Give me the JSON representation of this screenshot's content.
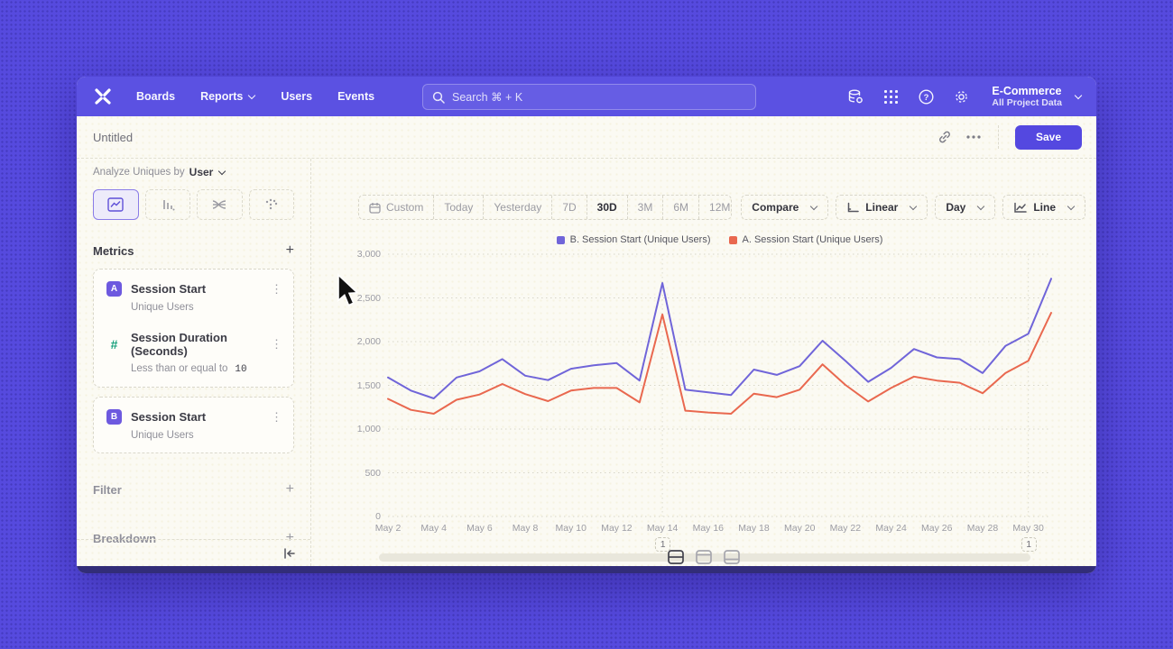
{
  "nav": {
    "items": [
      "Boards",
      "Reports",
      "Users",
      "Events"
    ],
    "search": {
      "placeholder": "Search  ⌘ + K"
    },
    "project": {
      "name": "E-Commerce",
      "scope": "All Project Data"
    }
  },
  "titlebar": {
    "title": "Untitled",
    "save_label": "Save"
  },
  "sidebar": {
    "analyze_prefix": "Analyze Uniques by",
    "analyze_value": "User",
    "metrics_header": "Metrics",
    "filter_label": "Filter",
    "breakdown_label": "Breakdown",
    "metrics": [
      {
        "badge": "A",
        "title": "Session Start",
        "subtitle": "Unique Users"
      },
      {
        "badge": "#",
        "title": "Session Duration (Seconds)",
        "subtitle": "Less than or equal to",
        "subtitle_value": "10"
      },
      {
        "badge": "B",
        "title": "Session Start",
        "subtitle": "Unique Users"
      }
    ]
  },
  "toolbar": {
    "ranges": [
      "Custom",
      "Today",
      "Yesterday",
      "7D",
      "30D",
      "3M",
      "6M",
      "12M"
    ],
    "selected_range": "30D",
    "compare_label": "Compare",
    "scale_label": "Linear",
    "interval_label": "Day",
    "chart_type_label": "Line"
  },
  "chart_data": {
    "type": "line",
    "title": "",
    "x": [
      "May 2",
      "May 3",
      "May 4",
      "May 5",
      "May 6",
      "May 7",
      "May 8",
      "May 9",
      "May 10",
      "May 11",
      "May 12",
      "May 13",
      "May 14",
      "May 15",
      "May 16",
      "May 17",
      "May 18",
      "May 19",
      "May 20",
      "May 21",
      "May 22",
      "May 23",
      "May 24",
      "May 25",
      "May 26",
      "May 27",
      "May 28",
      "May 29",
      "May 30",
      "May 31"
    ],
    "x_tick_step": 2,
    "series": [
      {
        "name": "B. Session Start (Unique Users)",
        "color": "#7065d9",
        "values": [
          1590,
          1440,
          1350,
          1590,
          1660,
          1800,
          1610,
          1560,
          1690,
          1730,
          1755,
          1555,
          2670,
          1450,
          1420,
          1390,
          1680,
          1620,
          1720,
          2010,
          1780,
          1540,
          1700,
          1915,
          1820,
          1800,
          1640,
          1950,
          2090,
          2720
        ]
      },
      {
        "name": "A. Session Start (Unique Users)",
        "color": "#e9684f",
        "values": [
          1345,
          1220,
          1175,
          1335,
          1395,
          1515,
          1400,
          1320,
          1440,
          1470,
          1470,
          1305,
          2310,
          1210,
          1190,
          1175,
          1405,
          1365,
          1450,
          1740,
          1505,
          1315,
          1470,
          1600,
          1555,
          1530,
          1410,
          1640,
          1780,
          2330
        ]
      }
    ],
    "ylim": [
      0,
      3000
    ],
    "yticks": [
      0,
      500,
      1000,
      1500,
      2000,
      2500,
      3000
    ],
    "ytick_labels": [
      "0",
      "500",
      "1,000",
      "1,500",
      "2,000",
      "2,500",
      "3,000"
    ],
    "annotations": [
      {
        "index": 12,
        "label": "1"
      },
      {
        "index": 28,
        "label": "1"
      }
    ],
    "legend_position": "top-center",
    "grid": "horizontal-dotted"
  },
  "colors": {
    "accent": "#5448e0",
    "nav": "#5b51e2",
    "background": "#564ade",
    "series_b": "#7065d9",
    "series_a": "#e9684f",
    "badge": "#6d59df",
    "hash": "#16a07c"
  }
}
